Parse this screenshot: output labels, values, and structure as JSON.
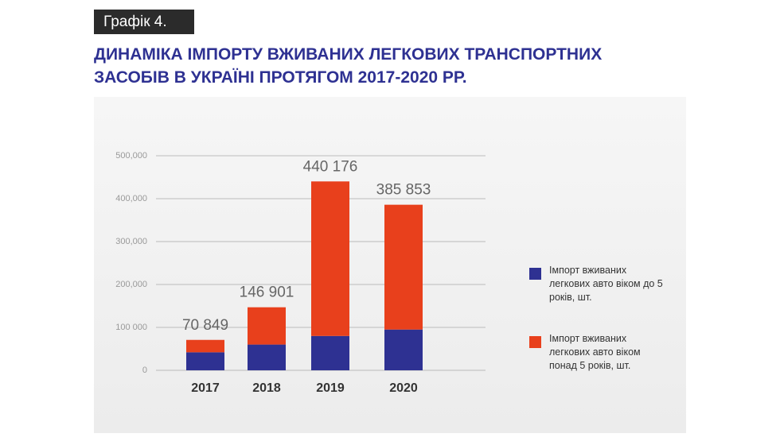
{
  "chart_data": {
    "type": "stacked_bar",
    "badge": "Графік 4.",
    "title": "ДИНАМІКА ІМПОРТУ ВЖИВАНИХ ЛЕГКОВИХ ТРАНСПОРТНИХ ЗАСОБІВ В УКРАЇНІ ПРОТЯГОМ 2017-2020 РР.",
    "categories": [
      "2017",
      "2018",
      "2019",
      "2020"
    ],
    "series": [
      {
        "name": "Імпорт вживаних легкових авто віком до 5 років, шт.",
        "color": "#2e3192",
        "values": [
          42000,
          60000,
          80000,
          95000
        ]
      },
      {
        "name": "Імпорт вживаних легкових авто віком понад 5 років, шт.",
        "color": "#e8401c",
        "values": [
          28849,
          86901,
          360176,
          290853
        ]
      }
    ],
    "totals": [
      70849,
      146901,
      440176,
      385853
    ],
    "total_labels": [
      "70 849",
      "146 901",
      "440 176",
      "385 853"
    ],
    "ylim": [
      0,
      500000
    ],
    "yticks": [
      0,
      {
        "value": 100000,
        "label": "100 000"
      },
      {
        "value": 200000,
        "label": "200,000"
      },
      {
        "value": 300000,
        "label": "300,000"
      },
      {
        "value": 400000,
        "label": "400,000"
      },
      {
        "value": 500000,
        "label": "500,000"
      }
    ],
    "grid": true
  }
}
